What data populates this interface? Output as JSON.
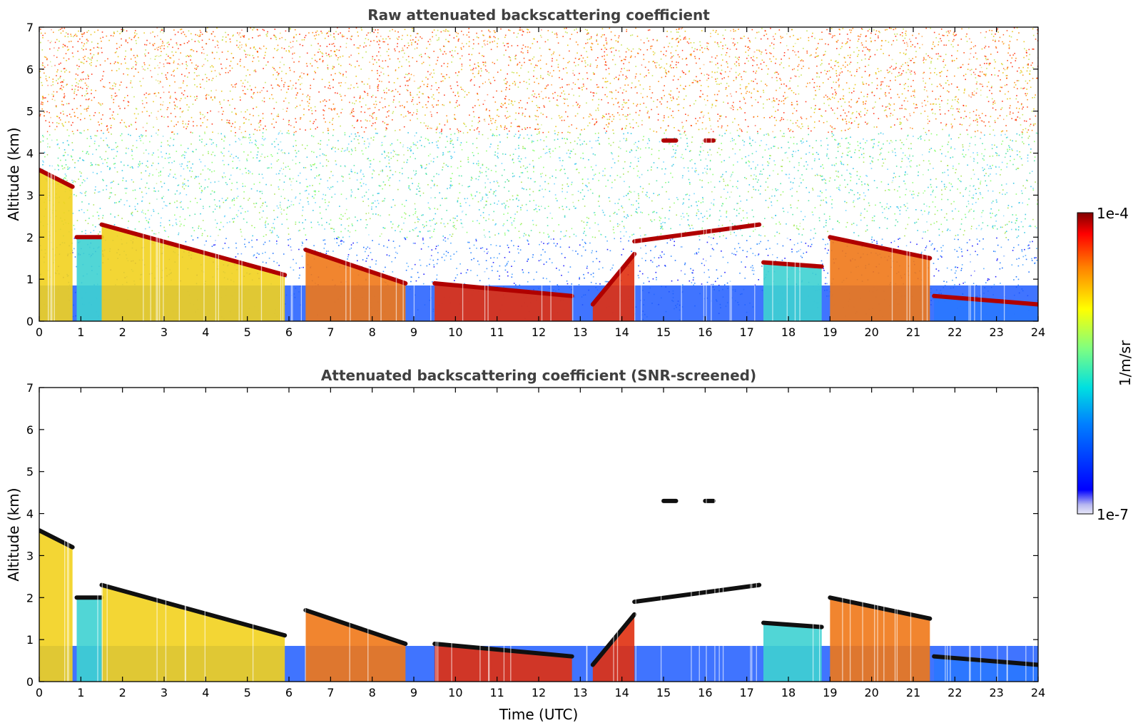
{
  "chart_data": [
    {
      "type": "heatmap",
      "title": "Raw attenuated backscattering coefficient",
      "xlabel": "",
      "ylabel": "Altitude (km)",
      "xlim": [
        0,
        24
      ],
      "ylim": [
        0,
        7
      ],
      "xticks": [
        "0",
        "1",
        "2",
        "3",
        "4",
        "5",
        "6",
        "7",
        "8",
        "9",
        "10",
        "11",
        "12",
        "13",
        "14",
        "15",
        "16",
        "17",
        "18",
        "19",
        "20",
        "21",
        "22",
        "23",
        "24"
      ],
      "yticks": [
        "0",
        "1",
        "2",
        "3",
        "4",
        "5",
        "6",
        "7"
      ],
      "background_noise": true,
      "layers": [
        {
          "x": [
            0.0,
            0.8
          ],
          "top": [
            3.6,
            3.2
          ],
          "fill": "yellow"
        },
        {
          "x": [
            0.9,
            1.5
          ],
          "top": [
            2.0,
            2.0
          ],
          "fill": "cyan"
        },
        {
          "x": [
            1.5,
            5.9
          ],
          "top": [
            2.3,
            1.1
          ],
          "fill": "yellow"
        },
        {
          "x": [
            6.4,
            8.8
          ],
          "top": [
            1.7,
            0.9
          ],
          "fill": "orange"
        },
        {
          "x": [
            9.5,
            12.8
          ],
          "top": [
            0.9,
            0.6
          ],
          "fill": "red"
        },
        {
          "x": [
            13.3,
            14.3
          ],
          "top": [
            0.4,
            1.6
          ],
          "fill": "red"
        },
        {
          "x": [
            14.3,
            17.3
          ],
          "top": [
            1.9,
            2.3
          ],
          "fill": "none"
        },
        {
          "x": [
            17.4,
            18.8
          ],
          "top": [
            1.4,
            1.3
          ],
          "fill": "cyan"
        },
        {
          "x": [
            19.0,
            21.4
          ],
          "top": [
            2.0,
            1.5
          ],
          "fill": "orange"
        },
        {
          "x": [
            21.5,
            24.0
          ],
          "top": [
            0.6,
            0.4
          ],
          "fill": "blue"
        },
        {
          "x": [
            15.0,
            15.3
          ],
          "top": [
            4.3,
            4.3
          ],
          "fill": "none"
        },
        {
          "x": [
            16.0,
            16.2
          ],
          "top": [
            4.3,
            4.3
          ],
          "fill": "none"
        }
      ]
    },
    {
      "type": "heatmap",
      "title": "Attenuated backscattering coefficient (SNR-screened)",
      "xlabel": "Time (UTC)",
      "ylabel": "Altitude (km)",
      "xlim": [
        0,
        24
      ],
      "ylim": [
        0,
        7
      ],
      "xticks": [
        "0",
        "1",
        "2",
        "3",
        "4",
        "5",
        "6",
        "7",
        "8",
        "9",
        "10",
        "11",
        "12",
        "13",
        "14",
        "15",
        "16",
        "17",
        "18",
        "19",
        "20",
        "21",
        "22",
        "23",
        "24"
      ],
      "yticks": [
        "0",
        "1",
        "2",
        "3",
        "4",
        "5",
        "6",
        "7"
      ],
      "background_noise": false,
      "layers": [
        {
          "x": [
            0.0,
            0.8
          ],
          "top": [
            3.6,
            3.2
          ],
          "fill": "yellow"
        },
        {
          "x": [
            0.9,
            1.5
          ],
          "top": [
            2.0,
            2.0
          ],
          "fill": "cyan"
        },
        {
          "x": [
            1.5,
            5.9
          ],
          "top": [
            2.3,
            1.1
          ],
          "fill": "yellow"
        },
        {
          "x": [
            6.4,
            8.8
          ],
          "top": [
            1.7,
            0.9
          ],
          "fill": "orange"
        },
        {
          "x": [
            9.5,
            12.8
          ],
          "top": [
            0.9,
            0.6
          ],
          "fill": "red"
        },
        {
          "x": [
            13.3,
            14.3
          ],
          "top": [
            0.4,
            1.6
          ],
          "fill": "red"
        },
        {
          "x": [
            14.3,
            17.3
          ],
          "top": [
            1.9,
            2.3
          ],
          "fill": "none"
        },
        {
          "x": [
            17.4,
            18.8
          ],
          "top": [
            1.4,
            1.3
          ],
          "fill": "cyan"
        },
        {
          "x": [
            19.0,
            21.4
          ],
          "top": [
            2.0,
            1.5
          ],
          "fill": "orange"
        },
        {
          "x": [
            21.5,
            24.0
          ],
          "top": [
            0.6,
            0.4
          ],
          "fill": "blue"
        },
        {
          "x": [
            15.0,
            15.3
          ],
          "top": [
            4.3,
            4.3
          ],
          "fill": "none"
        },
        {
          "x": [
            16.0,
            16.2
          ],
          "top": [
            4.3,
            4.3
          ],
          "fill": "none"
        }
      ]
    }
  ],
  "colorbar": {
    "max_label": "1e-4",
    "min_label": "1e-7",
    "unit_label": "1/m/sr",
    "scale": "log",
    "colormap": "jet"
  }
}
